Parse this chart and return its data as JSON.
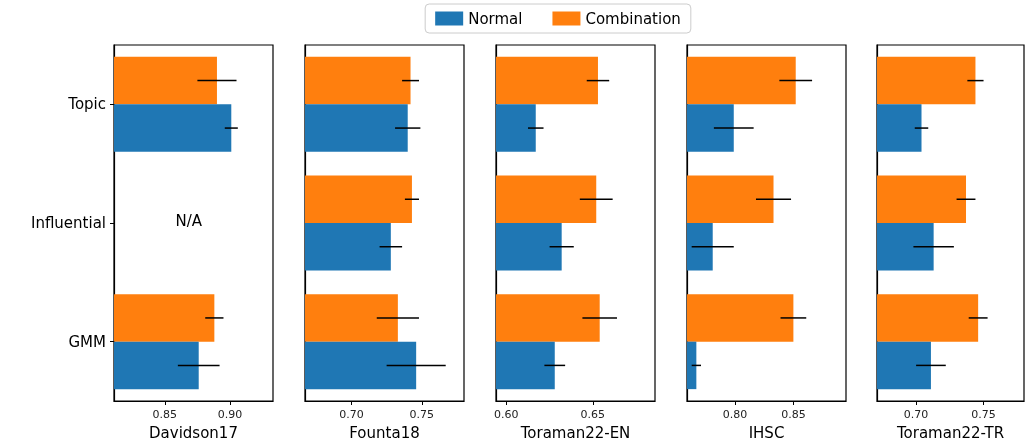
{
  "chart_data": [
    {
      "type": "bar",
      "orientation": "horizontal",
      "xlabel": "Davidson17",
      "categories": [
        "Topic",
        "Influential",
        "GMM"
      ],
      "xlim": [
        0.811,
        0.933
      ],
      "xticks": [
        0.85,
        {
          "value": 0.9,
          "label": "0.90"
        }
      ],
      "annotations": [
        "N/A"
      ],
      "legend": "top",
      "series": [
        {
          "name": "Normal",
          "color": "#1f77b4",
          "values": [
            0.901,
            null,
            0.876
          ],
          "errors": [
            0.005,
            null,
            0.016
          ]
        },
        {
          "name": "Combination",
          "color": "#ff7f0e",
          "values": [
            0.89,
            null,
            0.888
          ],
          "errors": [
            0.015,
            null,
            0.007
          ]
        }
      ]
    },
    {
      "type": "bar",
      "orientation": "horizontal",
      "xlabel": "Founta18",
      "categories": [
        null,
        null,
        null
      ],
      "xlim": [
        0.667,
        0.78
      ],
      "xticks": [
        {
          "value": 0.7,
          "label": "0.70"
        },
        0.75
      ],
      "tick_labels": "x",
      "series": [
        {
          "color": "#1f77b4",
          "values": [
            0.74,
            0.728,
            0.746
          ],
          "errors": [
            0.009,
            0.008,
            0.021
          ]
        },
        {
          "color": "#ff7f0e",
          "values": [
            0.742,
            0.743,
            0.733
          ],
          "errors": [
            0.006,
            0.005,
            0.015
          ]
        }
      ]
    },
    {
      "type": "bar",
      "orientation": "horizontal",
      "xlabel": "Toraman22-EN",
      "categories": [
        null,
        null,
        null
      ],
      "xlim": [
        0.594,
        0.686
      ],
      "xticks": [
        {
          "value": 0.6,
          "label": "0.60"
        },
        0.65
      ],
      "tick_labels": "x",
      "series": [
        {
          "color": "#1f77b4",
          "values": [
            0.617,
            0.632,
            0.628
          ],
          "errors": [
            0.0045,
            0.007,
            0.006
          ]
        },
        {
          "color": "#ff7f0e",
          "values": [
            0.653,
            0.652,
            0.654
          ],
          "errors": [
            0.0065,
            0.0095,
            0.01
          ]
        }
      ]
    },
    {
      "type": "bar",
      "orientation": "horizontal",
      "xlabel": "IHSC",
      "categories": [
        null,
        null,
        null
      ],
      "xlim": [
        0.759,
        0.895
      ],
      "xticks": [
        {
          "value": 0.8,
          "label": "0.80"
        },
        0.85
      ],
      "tick_labels": "x",
      "series": [
        {
          "color": "#1f77b4",
          "values": [
            0.799,
            0.781,
            0.767
          ],
          "errors": [
            0.017,
            0.018,
            0.004
          ]
        },
        {
          "color": "#ff7f0e",
          "values": [
            0.852,
            0.833,
            0.85
          ],
          "errors": [
            0.014,
            0.015,
            0.011
          ]
        }
      ]
    },
    {
      "type": "bar",
      "orientation": "horizontal",
      "xlabel": "Toraman22-TR",
      "categories": [
        null,
        null,
        null
      ],
      "xlim": [
        0.671,
        0.78
      ],
      "xticks": [
        {
          "value": 0.7,
          "label": "0.70"
        },
        0.75
      ],
      "tick_labels": "x",
      "series": [
        {
          "color": "#1f77b4",
          "values": [
            0.704,
            0.713,
            0.711
          ],
          "errors": [
            0.005,
            0.015,
            0.011
          ]
        },
        {
          "color": "#ff7f0e",
          "values": [
            0.744,
            0.737,
            0.746
          ],
          "errors": [
            0.006,
            0.007,
            0.007
          ]
        }
      ]
    }
  ]
}
